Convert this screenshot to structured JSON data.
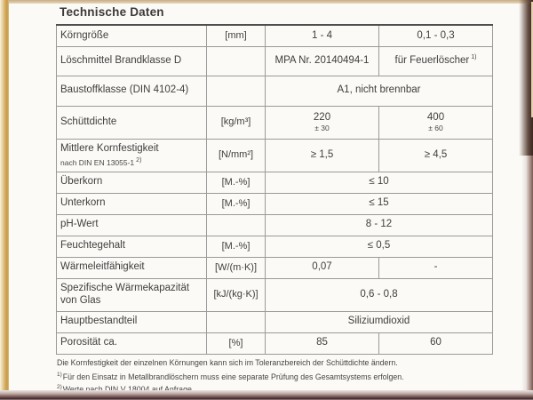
{
  "header": {
    "title": "Technische Daten"
  },
  "table": {
    "rows": [
      {
        "label": "Körngröße",
        "unit": "[mm]",
        "a": "1 - 4",
        "b": "0,1 - 0,3"
      },
      {
        "label": "Löschmittel Brandklasse D",
        "unit": "",
        "a": "MPA Nr. 20140494-1",
        "b": "für Feuerlöscher",
        "b_sup": "1)"
      },
      {
        "label": "Baustoffklasse (DIN 4102-4)",
        "unit": "",
        "span": "A1, nicht brennbar"
      },
      {
        "label": "Schüttdichte",
        "unit": "[kg/m³]",
        "a": "220",
        "a_sub": "± 30",
        "b": "400",
        "b_sub": "± 60"
      },
      {
        "label": "Mittlere Kornfestigkeit",
        "label_sub": "nach DIN EN 13055-1",
        "label_sub_sup": "2)",
        "unit": "[N/mm²]",
        "a": "≥ 1,5",
        "b": "≥ 4,5"
      },
      {
        "label": "Überkorn",
        "unit": "[M.-%]",
        "span": "≤ 10"
      },
      {
        "label": "Unterkorn",
        "unit": "[M.-%]",
        "span": "≤ 15"
      },
      {
        "label": "pH-Wert",
        "unit": "",
        "span": "8 - 12"
      },
      {
        "label": "Feuchtegehalt",
        "unit": "[M.-%]",
        "span": "≤ 0,5"
      },
      {
        "label": "Wärmeleitfähigkeit",
        "unit": "[W/(m·K)]",
        "a": "0,07",
        "b": "-"
      },
      {
        "label": "Spezifische Wärmekapazität von Glas",
        "unit": "[kJ/(kg·K)]",
        "span": "0,6 - 0,8"
      },
      {
        "label": "Hauptbestandteil",
        "unit": "",
        "span": "Siliziumdioxid"
      },
      {
        "label": "Porosität ca.",
        "unit": "[%]",
        "a": "85",
        "b": "60"
      }
    ]
  },
  "footnotes": [
    {
      "sup": "",
      "text": "Die Kornfestigkeit der einzelnen Körnungen kann sich im Toleranzbereich der Schüttdichte ändern."
    },
    {
      "sup": "1)",
      "text": "Für den Einsatz in Metallbrandlöschern muss eine separate Prüfung des Gesamtsystems erfolgen."
    },
    {
      "sup": "2)",
      "text": "Werte nach DIN V 18004 auf Anfrage"
    }
  ],
  "colors": {
    "frame_gold": "#c69c49",
    "frame_shadow": "#4a3126",
    "bottom_bar": "#402a2e",
    "text": "#3e3e3e",
    "grid_line": "#9a9a9a"
  }
}
